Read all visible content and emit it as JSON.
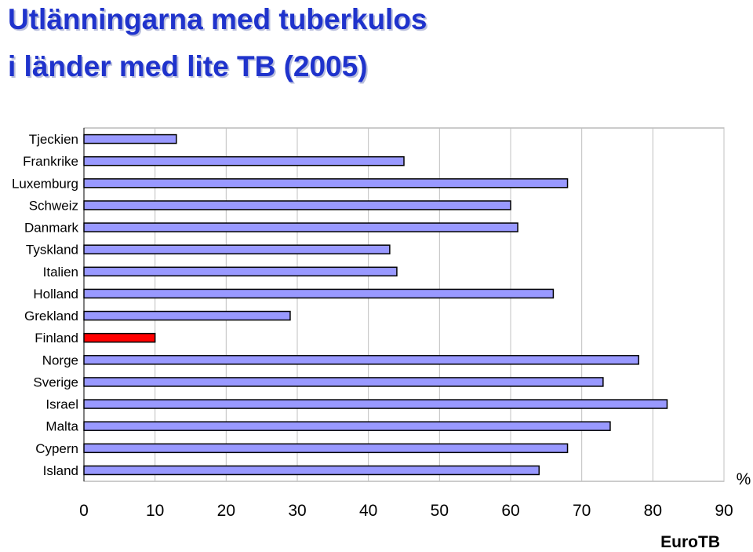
{
  "chart_data": {
    "type": "bar",
    "orientation": "horizontal",
    "title": "Utlänningarna med tuberkulos",
    "subtitle": "i länder med lite TB (2005)",
    "categories": [
      "Tjeckien",
      "Frankrike",
      "Luxemburg",
      "Schweiz",
      "Danmark",
      "Tyskland",
      "Italien",
      "Holland",
      "Grekland",
      "Finland",
      "Norge",
      "Sverige",
      "Israel",
      "Malta",
      "Cypern",
      "Island"
    ],
    "values": [
      13,
      45,
      68,
      60,
      61,
      43,
      44,
      66,
      29,
      10,
      78,
      73,
      82,
      74,
      68,
      64
    ],
    "highlight": "Finland",
    "xlim": [
      0,
      90
    ],
    "xticks": [
      0,
      10,
      20,
      30,
      40,
      50,
      60,
      70,
      80,
      90
    ],
    "xunit": "%",
    "grid": "vertical",
    "colors": {
      "bar": "#9999ff",
      "highlight": "#ff0000",
      "title": "#1f33cc"
    }
  },
  "source": "EuroTB"
}
